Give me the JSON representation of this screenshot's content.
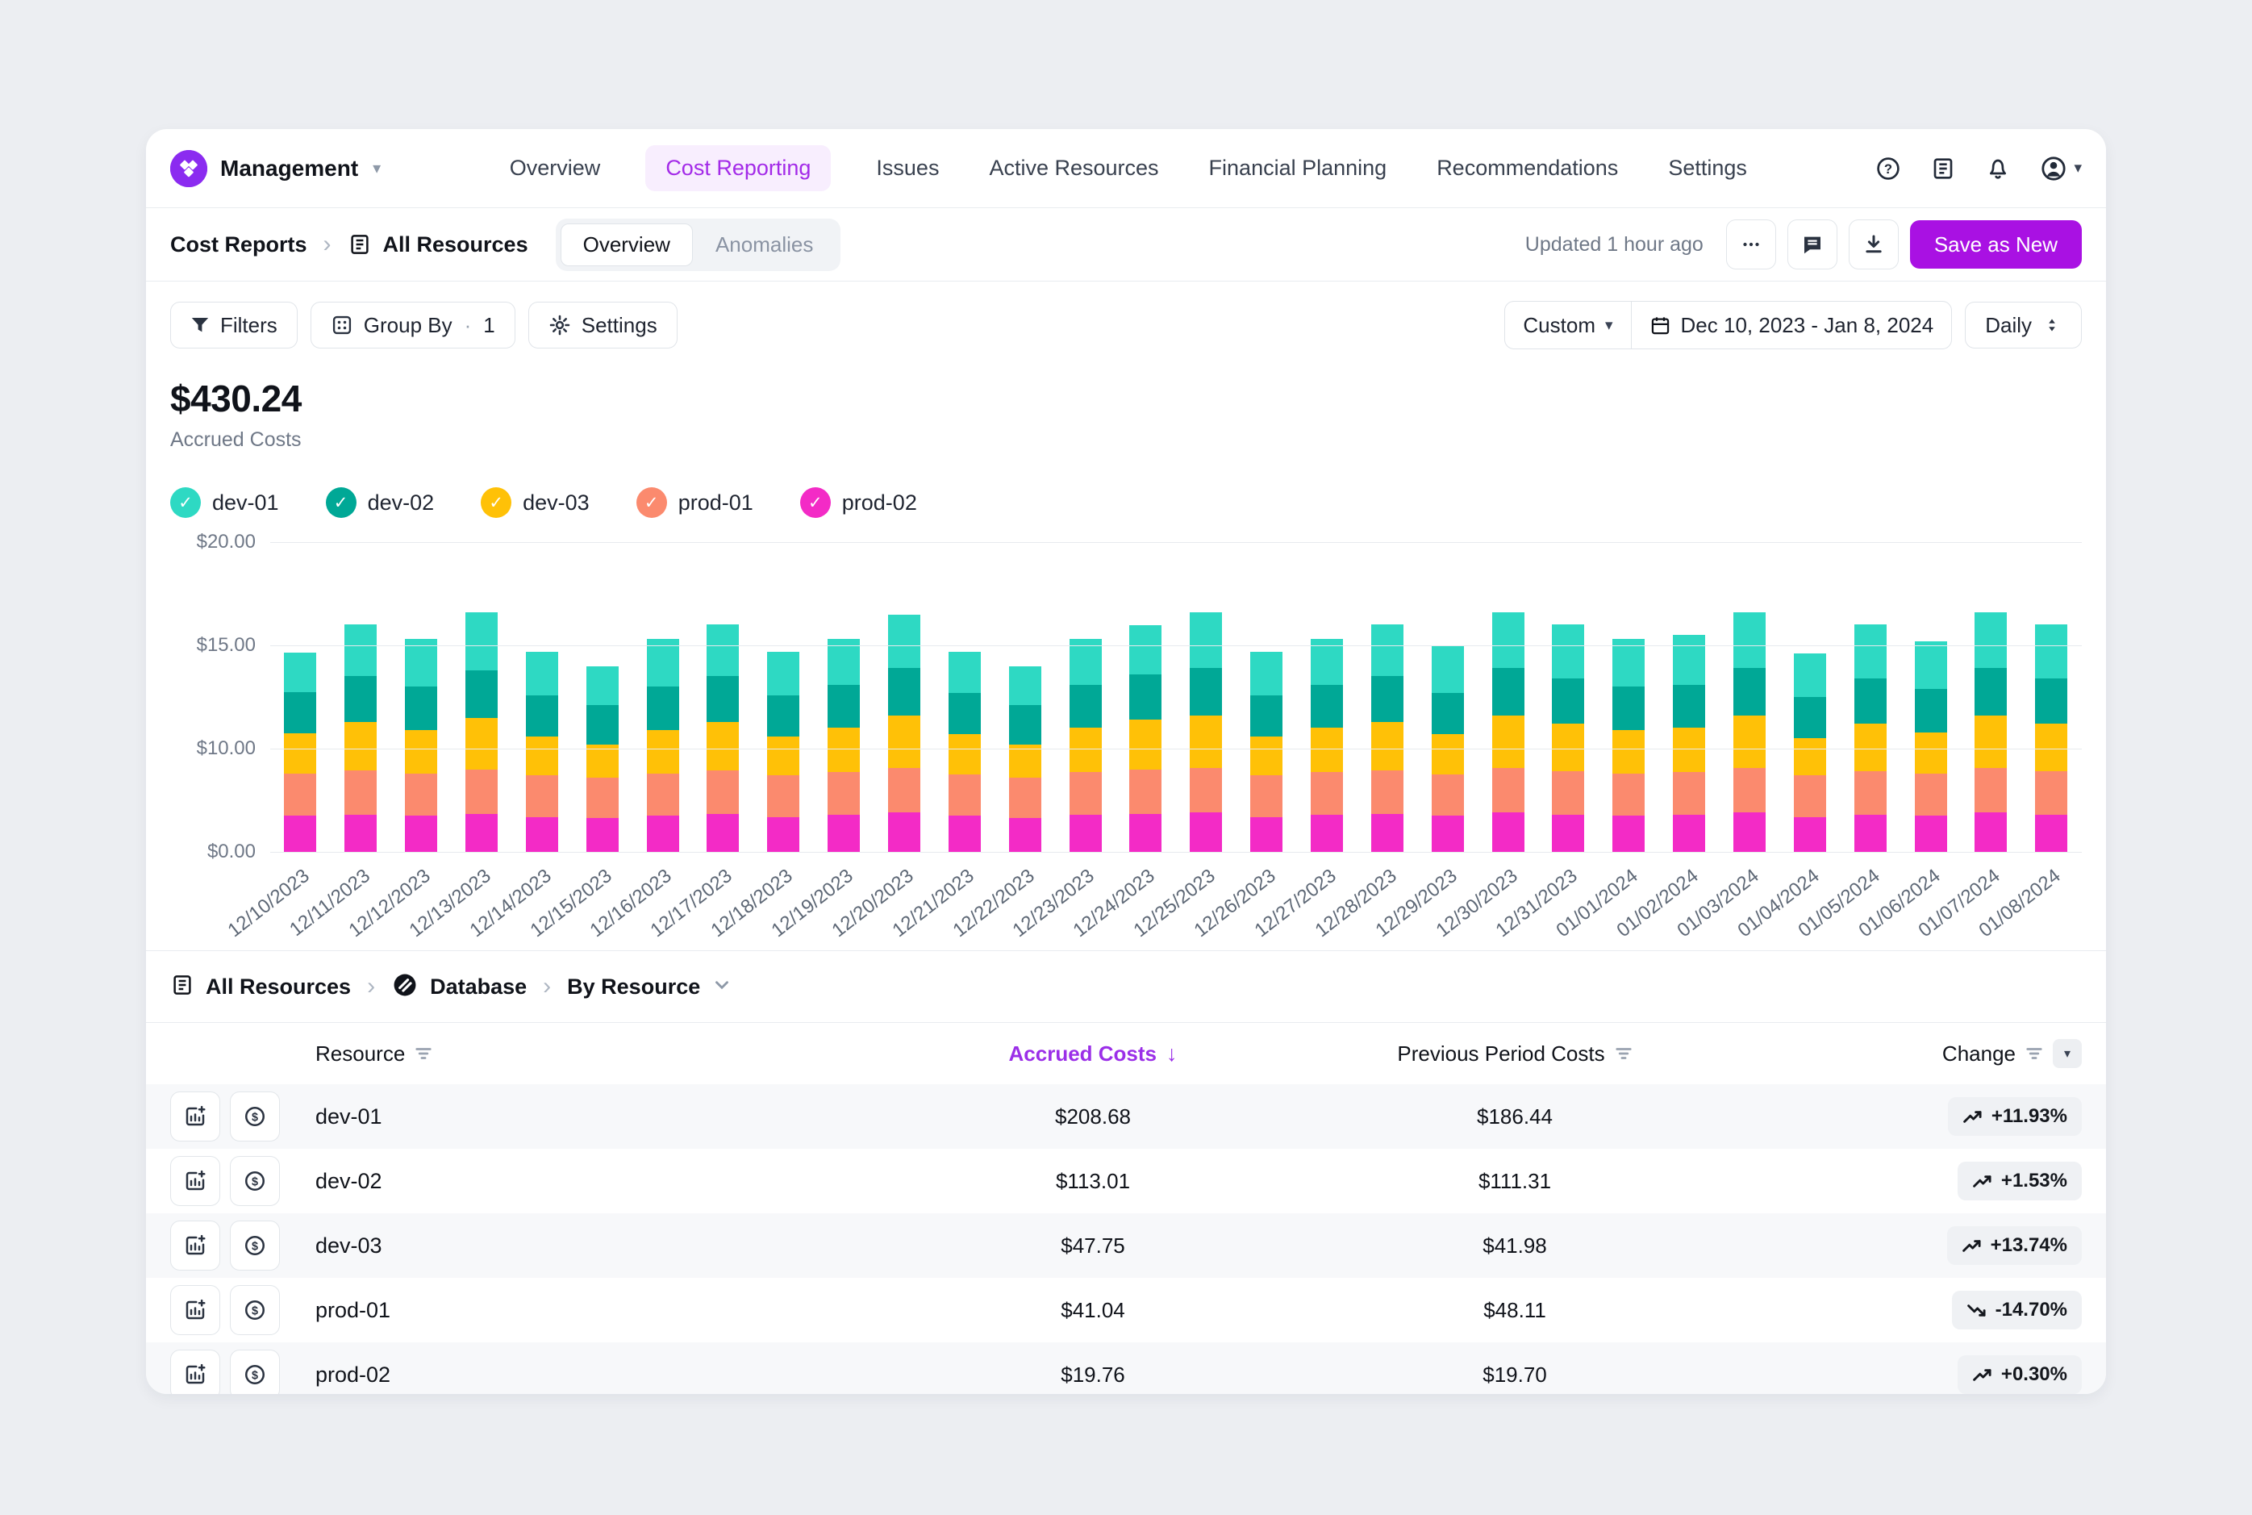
{
  "app": {
    "brand": "Management"
  },
  "nav": {
    "items": [
      {
        "label": "Overview",
        "active": false
      },
      {
        "label": "Cost Reporting",
        "active": true
      },
      {
        "label": "Issues",
        "active": false
      },
      {
        "label": "Active Resources",
        "active": false
      },
      {
        "label": "Financial Planning",
        "active": false
      },
      {
        "label": "Recommendations",
        "active": false
      },
      {
        "label": "Settings",
        "active": false
      }
    ]
  },
  "subheader": {
    "breadcrumb": {
      "root": "Cost Reports",
      "current": "All Resources"
    },
    "view_tabs": [
      {
        "label": "Overview",
        "active": true
      },
      {
        "label": "Anomalies",
        "active": false
      }
    ],
    "updated": "Updated 1 hour ago",
    "save_button": "Save as New"
  },
  "toolbar": {
    "filters_label": "Filters",
    "group_by_label": "Group By",
    "group_by_count": "1",
    "settings_label": "Settings",
    "range_preset": "Custom",
    "date_range": "Dec 10, 2023 - Jan 8, 2024",
    "granularity": "Daily"
  },
  "kpi": {
    "value": "$430.24",
    "label": "Accrued Costs"
  },
  "chart_data": {
    "type": "bar",
    "stacked": true,
    "xlabel": "",
    "ylabel": "",
    "ylim": [
      0,
      20
    ],
    "grid": "horizontal",
    "legend_position": "top",
    "y_ticks": [
      {
        "label": "$20.00",
        "position": 0
      },
      {
        "label": "$15.00",
        "position": 0.3333
      },
      {
        "label": "$10.00",
        "position": 0.6667
      },
      {
        "label": "$0.00",
        "position": 1
      }
    ],
    "legend": [
      {
        "label": "dev-01",
        "color": "#2ED9C3"
      },
      {
        "label": "dev-02",
        "color": "#00A896"
      },
      {
        "label": "dev-03",
        "color": "#FFC107"
      },
      {
        "label": "prod-01",
        "color": "#FB8A6E"
      },
      {
        "label": "prod-02",
        "color": "#F32BC6"
      }
    ],
    "x_labels": [
      "12/10/2023",
      "12/11/2023",
      "12/12/2023",
      "12/13/2023",
      "12/14/2023",
      "12/15/2023",
      "12/16/2023",
      "12/17/2023",
      "12/18/2023",
      "12/19/2023",
      "12/20/2023",
      "12/21/2023",
      "12/22/2023",
      "12/23/2023",
      "12/24/2023",
      "12/25/2023",
      "12/26/2023",
      "12/27/2023",
      "12/28/2023",
      "12/29/2023",
      "12/30/2023",
      "12/31/2023",
      "01/01/2024",
      "01/02/2024",
      "01/03/2024",
      "01/04/2024",
      "01/05/2024",
      "01/06/2024",
      "01/07/2024",
      "01/08/2024"
    ],
    "stack_order": "bottom-to-top",
    "series": [
      {
        "name": "prod-02",
        "color": "#F32BC6",
        "values": [
          3.5,
          3.6,
          3.5,
          3.7,
          3.4,
          3.3,
          3.5,
          3.7,
          3.4,
          3.6,
          3.8,
          3.5,
          3.3,
          3.6,
          3.7,
          3.8,
          3.4,
          3.6,
          3.7,
          3.5,
          3.8,
          3.6,
          3.5,
          3.6,
          3.8,
          3.4,
          3.6,
          3.5,
          3.8,
          3.6
        ]
      },
      {
        "name": "prod-01",
        "color": "#FB8A6E",
        "values": [
          4.05,
          4.3,
          4.1,
          4.3,
          4.0,
          3.9,
          4.1,
          4.2,
          4.0,
          4.1,
          4.3,
          4.0,
          3.9,
          4.1,
          4.3,
          4.3,
          4.0,
          4.1,
          4.2,
          4.0,
          4.3,
          4.2,
          4.1,
          4.1,
          4.3,
          4.0,
          4.2,
          4.1,
          4.3,
          4.2
        ]
      },
      {
        "name": "dev-03",
        "color": "#FFC107",
        "values": [
          3.2,
          3.4,
          3.3,
          3.5,
          3.2,
          3.0,
          3.3,
          3.4,
          3.2,
          3.3,
          3.5,
          3.2,
          3.0,
          3.3,
          3.4,
          3.5,
          3.2,
          3.3,
          3.4,
          3.2,
          3.5,
          3.4,
          3.3,
          3.3,
          3.5,
          3.1,
          3.4,
          3.2,
          3.5,
          3.4
        ]
      },
      {
        "name": "dev-02",
        "color": "#00A896",
        "values": [
          2.0,
          2.2,
          2.1,
          2.3,
          2.0,
          1.9,
          2.1,
          2.2,
          2.0,
          2.1,
          2.3,
          2.0,
          1.9,
          2.1,
          2.2,
          2.3,
          2.0,
          2.1,
          2.2,
          2.0,
          2.3,
          2.2,
          2.1,
          2.1,
          2.3,
          2.0,
          2.2,
          2.1,
          2.3,
          2.2
        ]
      },
      {
        "name": "dev-01",
        "color": "#2ED9C3",
        "values": [
          1.9,
          2.5,
          2.3,
          2.8,
          2.1,
          1.9,
          2.3,
          2.5,
          2.1,
          2.2,
          2.6,
          2.0,
          1.9,
          2.2,
          2.4,
          2.7,
          2.1,
          2.2,
          2.5,
          2.3,
          2.7,
          2.6,
          2.3,
          2.4,
          2.7,
          2.1,
          2.6,
          2.3,
          2.7,
          2.6
        ]
      }
    ]
  },
  "table": {
    "breadcrumb": [
      {
        "label": "All Resources"
      },
      {
        "label": "Database"
      },
      {
        "label": "By Resource"
      }
    ],
    "columns": [
      {
        "label": "Resource"
      },
      {
        "label": "Accrued Costs",
        "sorted": "desc"
      },
      {
        "label": "Previous Period Costs"
      },
      {
        "label": "Change"
      }
    ],
    "rows": [
      {
        "name": "dev-01",
        "accrued": "$208.68",
        "previous": "$186.44",
        "change": "+11.93%",
        "trend": "up"
      },
      {
        "name": "dev-02",
        "accrued": "$113.01",
        "previous": "$111.31",
        "change": "+1.53%",
        "trend": "up"
      },
      {
        "name": "dev-03",
        "accrued": "$47.75",
        "previous": "$41.98",
        "change": "+13.74%",
        "trend": "up"
      },
      {
        "name": "prod-01",
        "accrued": "$41.04",
        "previous": "$48.11",
        "change": "-14.70%",
        "trend": "down"
      },
      {
        "name": "prod-02",
        "accrued": "$19.76",
        "previous": "$19.70",
        "change": "+0.30%",
        "trend": "up"
      }
    ]
  },
  "colors": {
    "accent_purple": "#A911E3",
    "nav_active_text": "#A32AE8",
    "nav_active_bg": "#F8EEFE",
    "sorted_header": "#9B2FE8",
    "row_stripe": "#F7F8FA",
    "pill_bg": "#EFF1F4",
    "page_bg": "#ECEEF2"
  }
}
